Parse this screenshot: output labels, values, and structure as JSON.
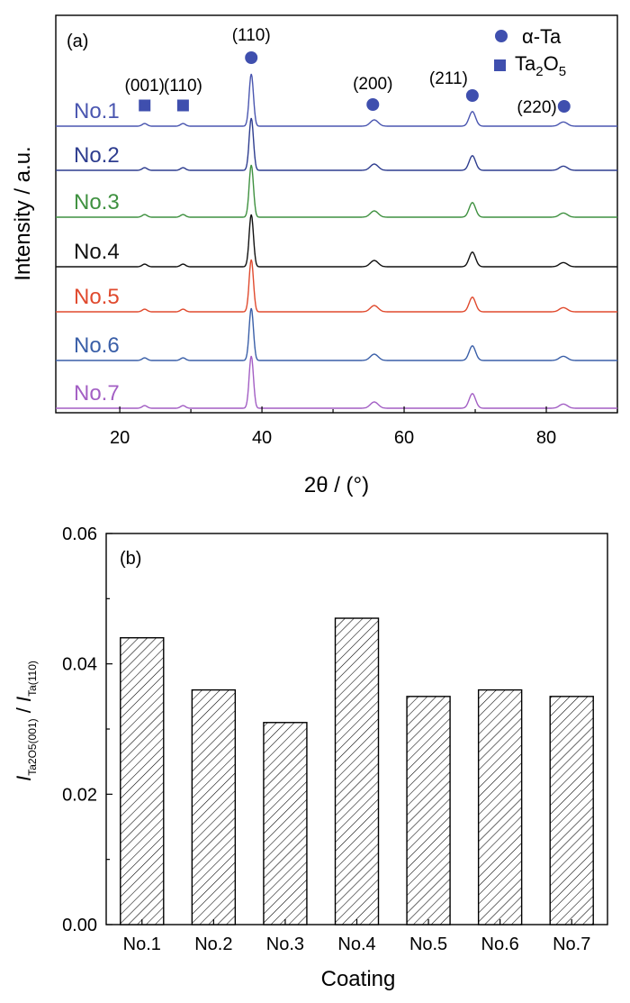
{
  "chart_data": [
    {
      "type": "line",
      "panel_label": "(a)",
      "xlabel": "2θ / (°)",
      "ylabel": "Intensity / a.u.",
      "xlim": [
        11,
        90
      ],
      "xticks": [
        "20",
        "40",
        "60",
        "80"
      ],
      "legend": [
        {
          "marker": "circle",
          "label": "α-Ta"
        },
        {
          "marker": "square",
          "label": "Ta2O5"
        }
      ],
      "peak_labels": [
        {
          "label": "(001)",
          "x": 23.5,
          "phase": "Ta2O5"
        },
        {
          "label": "(110)",
          "x": 28.9,
          "phase": "Ta2O5"
        },
        {
          "label": "(110)",
          "x": 38.5,
          "phase": "α-Ta"
        },
        {
          "label": "(200)",
          "x": 55.6,
          "phase": "α-Ta"
        },
        {
          "label": "(211)",
          "x": 69.6,
          "phase": "α-Ta"
        },
        {
          "label": "(220)",
          "x": 82.5,
          "phase": "α-Ta"
        }
      ],
      "peaks": [
        {
          "x": 23.5,
          "width": 0.35,
          "height": 0.05
        },
        {
          "x": 28.9,
          "width": 0.35,
          "height": 0.05
        },
        {
          "x": 38.5,
          "width": 0.3,
          "height": 1.0
        },
        {
          "x": 55.8,
          "width": 0.55,
          "height": 0.12
        },
        {
          "x": 69.6,
          "width": 0.45,
          "height": 0.28
        },
        {
          "x": 82.4,
          "width": 0.55,
          "height": 0.08
        }
      ],
      "series": [
        {
          "name": "No.1",
          "color": "#4a56b0"
        },
        {
          "name": "No.2",
          "color": "#2e3d8f"
        },
        {
          "name": "No.3",
          "color": "#3f9140"
        },
        {
          "name": "No.4",
          "color": "#111111"
        },
        {
          "name": "No.5",
          "color": "#e04a2e"
        },
        {
          "name": "No.6",
          "color": "#3a5fa8"
        },
        {
          "name": "No.7",
          "color": "#a35fc4"
        }
      ]
    },
    {
      "type": "bar",
      "panel_label": "(b)",
      "xlabel": "Coating",
      "ylabel_parts": {
        "i1": "I",
        "sub1": "Ta2O5(001)",
        "slash": " / ",
        "i2": "I",
        "sub2": "Ta(110)"
      },
      "categories": [
        "No.1",
        "No.2",
        "No.3",
        "No.4",
        "No.5",
        "No.6",
        "No.7"
      ],
      "values": [
        0.044,
        0.036,
        0.031,
        0.047,
        0.035,
        0.036,
        0.035
      ],
      "ylim": [
        0,
        0.06
      ],
      "yticks": [
        "0.00",
        "0.02",
        "0.04",
        "0.06"
      ],
      "fill": "diagonal hatch"
    }
  ]
}
